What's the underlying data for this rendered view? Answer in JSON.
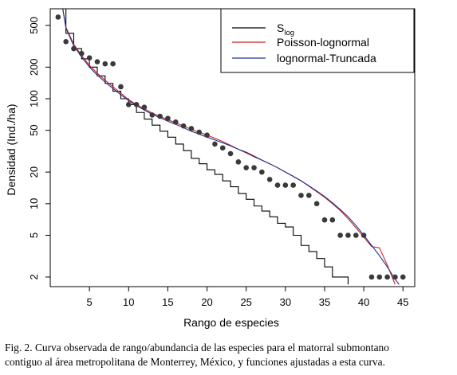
{
  "caption": {
    "line1": "Fig. 2. Curva observada de rango/abundancia de las especies para el matorral submontano",
    "line2": "contiguo al área metropolitana de Monterrey, México, y funciones ajustadas a esta curva."
  },
  "chart_data": {
    "type": "scatter",
    "title": "",
    "xlabel": "Rango de especies",
    "ylabel": "Densidad (Ind./ha)",
    "x_ticks": [
      5,
      10,
      15,
      20,
      25,
      30,
      35,
      40,
      45
    ],
    "y_ticks": [
      2,
      5,
      10,
      20,
      50,
      100,
      200,
      500
    ],
    "y_scale": "log",
    "xlim": [
      0,
      46.5
    ],
    "ylim": [
      1.62,
      720
    ],
    "grid": false,
    "legend_position": "top-right",
    "legend": [
      {
        "label_main": "S",
        "label_sub": "log",
        "color": "#000000"
      },
      {
        "label_main": "Poisson-lognormal",
        "label_sub": "",
        "color": "#cc2222"
      },
      {
        "label_main": "lognormal-Truncada",
        "label_sub": "",
        "color": "#22308f"
      }
    ],
    "points": {
      "x": [
        1,
        2,
        3,
        4,
        5,
        6,
        7,
        8,
        9,
        10,
        11,
        12,
        13,
        14,
        15,
        16,
        17,
        18,
        19,
        20,
        21,
        22,
        23,
        24,
        25,
        26,
        27,
        28,
        29,
        30,
        31,
        32,
        33,
        34,
        35,
        36,
        37,
        38,
        39,
        40,
        41,
        42,
        43,
        44,
        45
      ],
      "y": [
        600,
        350,
        300,
        270,
        245,
        225,
        215,
        215,
        130,
        88,
        88,
        83,
        70,
        68,
        65,
        60,
        55,
        52,
        48,
        45,
        37,
        34,
        30,
        25,
        22,
        22,
        20,
        17,
        15,
        15,
        15,
        12,
        12,
        10,
        7,
        7,
        5,
        5,
        5,
        5,
        2,
        2,
        2,
        2,
        2
      ]
    },
    "series": [
      {
        "name": "Slog",
        "color": "#000000",
        "step": true,
        "x": [
          1.5,
          2,
          3,
          4,
          5,
          6,
          7,
          8,
          9,
          10,
          11,
          12,
          13,
          14,
          15,
          16,
          17,
          18,
          19,
          20,
          21,
          22,
          23,
          24,
          25,
          26,
          27,
          28,
          29,
          30,
          31,
          32,
          33,
          34,
          35,
          36,
          37,
          38
        ],
        "y": [
          720,
          420,
          300,
          240,
          200,
          165,
          140,
          118,
          100,
          88,
          74,
          64,
          56,
          49,
          43,
          37,
          32,
          27,
          24,
          21,
          19,
          16.5,
          14.5,
          12.5,
          11,
          9.5,
          8.5,
          7.5,
          6.5,
          6,
          5,
          4,
          3.5,
          3,
          2.5,
          2,
          2,
          1.7
        ]
      },
      {
        "name": "Poisson-lognormal",
        "color": "#cc2222",
        "step": false,
        "x": [
          1.6,
          2,
          3,
          4,
          5,
          6,
          7,
          8,
          9,
          10,
          11,
          12,
          13,
          14,
          15,
          16,
          17,
          18,
          19,
          20,
          21,
          22,
          23,
          24,
          25,
          26,
          27,
          28,
          29,
          30,
          31,
          32,
          33,
          34,
          35,
          36,
          37,
          38,
          39,
          40,
          41,
          42,
          43,
          44
        ],
        "y": [
          720,
          480,
          330,
          258,
          208,
          175,
          150,
          130,
          113,
          98,
          88,
          80,
          73,
          68,
          63,
          59,
          55,
          51,
          48,
          45,
          42,
          39,
          36,
          33,
          31,
          28.5,
          26,
          24,
          22,
          20,
          18.2,
          16.5,
          14.7,
          13,
          11.5,
          10,
          8.6,
          7.2,
          5.9,
          4.8,
          3.9,
          3.8,
          2.6,
          1.7
        ]
      },
      {
        "name": "lognormal-Truncada",
        "color": "#22308f",
        "step": false,
        "x": [
          1.6,
          2,
          3,
          4,
          5,
          6,
          7,
          8,
          9,
          10,
          11,
          12,
          13,
          14,
          15,
          16,
          17,
          18,
          19,
          20,
          21,
          22,
          23,
          24,
          25,
          26,
          27,
          28,
          29,
          30,
          31,
          32,
          33,
          34,
          35,
          36,
          37,
          38,
          39,
          40,
          41,
          42,
          43,
          44,
          44.5
        ],
        "y": [
          720,
          470,
          320,
          250,
          200,
          168,
          144,
          125,
          109,
          96,
          86,
          78,
          71,
          66,
          61,
          57,
          53,
          49,
          46,
          43,
          40.5,
          38,
          35.5,
          33,
          30.5,
          28,
          26,
          24,
          22,
          20,
          18.2,
          16.5,
          14.8,
          13.2,
          11.7,
          10.2,
          8.8,
          7.5,
          6.2,
          5,
          4,
          3.2,
          2.5,
          1.9,
          1.7
        ]
      }
    ]
  }
}
